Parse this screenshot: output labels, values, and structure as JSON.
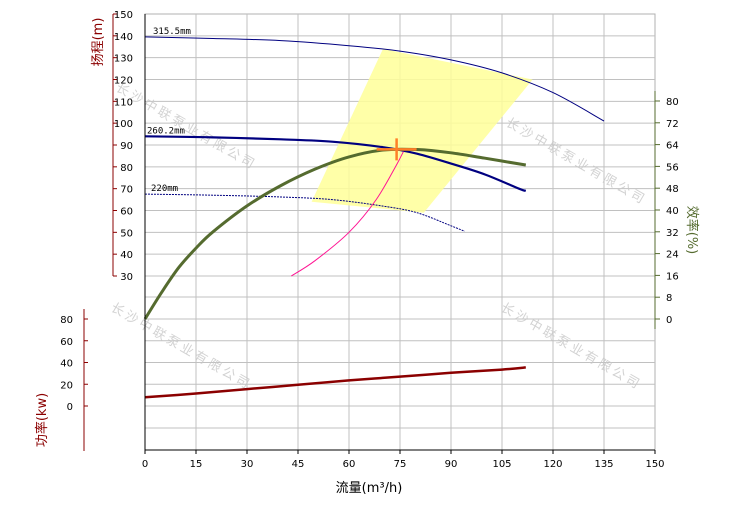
{
  "chart_data": {
    "type": "line",
    "xlabel": "流量(m³/h)",
    "xlim": [
      0,
      150
    ],
    "x_ticks": [
      0,
      15,
      30,
      45,
      60,
      75,
      90,
      105,
      120,
      135,
      150
    ],
    "head_axis": {
      "label": "扬程(m)",
      "ylim": [
        30,
        150
      ],
      "ticks": [
        30,
        40,
        50,
        60,
        70,
        80,
        90,
        100,
        110,
        120,
        130,
        140,
        150
      ],
      "color": "#8b0000"
    },
    "efficiency_axis": {
      "label": "效率(%)",
      "ylim": [
        0,
        80
      ],
      "ticks": [
        0,
        8,
        16,
        24,
        32,
        40,
        48,
        56,
        64,
        72,
        80
      ],
      "color": "#556b2f"
    },
    "power_axis": {
      "label": "功率(kw)",
      "ylim": [
        0,
        80
      ],
      "ticks": [
        0,
        20,
        40,
        60,
        80
      ],
      "color": "#8b0000"
    },
    "head_curves": [
      {
        "name": "315.5mm",
        "color": "#000080",
        "points": [
          [
            0,
            139.5
          ],
          [
            20,
            138.8
          ],
          [
            40,
            137.8
          ],
          [
            60,
            135.5
          ],
          [
            75,
            133
          ],
          [
            90,
            129
          ],
          [
            105,
            123
          ],
          [
            120,
            114
          ],
          [
            135,
            101
          ]
        ]
      },
      {
        "name": "260.2mm",
        "color": "#000080",
        "points": [
          [
            0,
            94
          ],
          [
            20,
            93.5
          ],
          [
            40,
            92.6
          ],
          [
            55,
            91.5
          ],
          [
            70,
            89
          ],
          [
            80,
            86
          ],
          [
            90,
            81.5
          ],
          [
            100,
            76.5
          ],
          [
            110,
            70
          ],
          [
            112,
            69
          ]
        ]
      },
      {
        "name": "220mm",
        "color": "#000080",
        "points": [
          [
            0,
            67.5
          ],
          [
            20,
            67
          ],
          [
            40,
            66.2
          ],
          [
            55,
            65
          ],
          [
            70,
            62
          ],
          [
            80,
            59
          ],
          [
            90,
            53
          ],
          [
            94,
            50.5
          ]
        ]
      }
    ],
    "efficiency_curve": {
      "color": "#556b2f",
      "points": [
        [
          0,
          0
        ],
        [
          5,
          10
        ],
        [
          10,
          19
        ],
        [
          15,
          26
        ],
        [
          20,
          32
        ],
        [
          30,
          41.5
        ],
        [
          40,
          49
        ],
        [
          50,
          55
        ],
        [
          60,
          59.5
        ],
        [
          70,
          62
        ],
        [
          80,
          62.2
        ],
        [
          90,
          61
        ],
        [
          100,
          59
        ],
        [
          112,
          56.5
        ]
      ]
    },
    "power_curve": {
      "color": "#8b0000",
      "points": [
        [
          0,
          8
        ],
        [
          15,
          11.5
        ],
        [
          30,
          15.5
        ],
        [
          45,
          19.5
        ],
        [
          60,
          23.5
        ],
        [
          75,
          27
        ],
        [
          90,
          30.5
        ],
        [
          105,
          33.5
        ],
        [
          112,
          35.5
        ]
      ]
    },
    "system_curve": {
      "color": "#ff1493",
      "points": [
        [
          43,
          30
        ],
        [
          50,
          37
        ],
        [
          60,
          50
        ],
        [
          68,
          65
        ],
        [
          74,
          81
        ],
        [
          76,
          87
        ]
      ]
    },
    "operating_point": {
      "x": 74,
      "y": 88,
      "color": "#ff7f27"
    },
    "operating_region": {
      "color": "#ffff99",
      "points": [
        [
          70,
          134
        ],
        [
          114,
          120
        ],
        [
          82,
          59
        ],
        [
          49,
          64
        ]
      ]
    },
    "watermark": "长沙中联泵业有限公司"
  }
}
